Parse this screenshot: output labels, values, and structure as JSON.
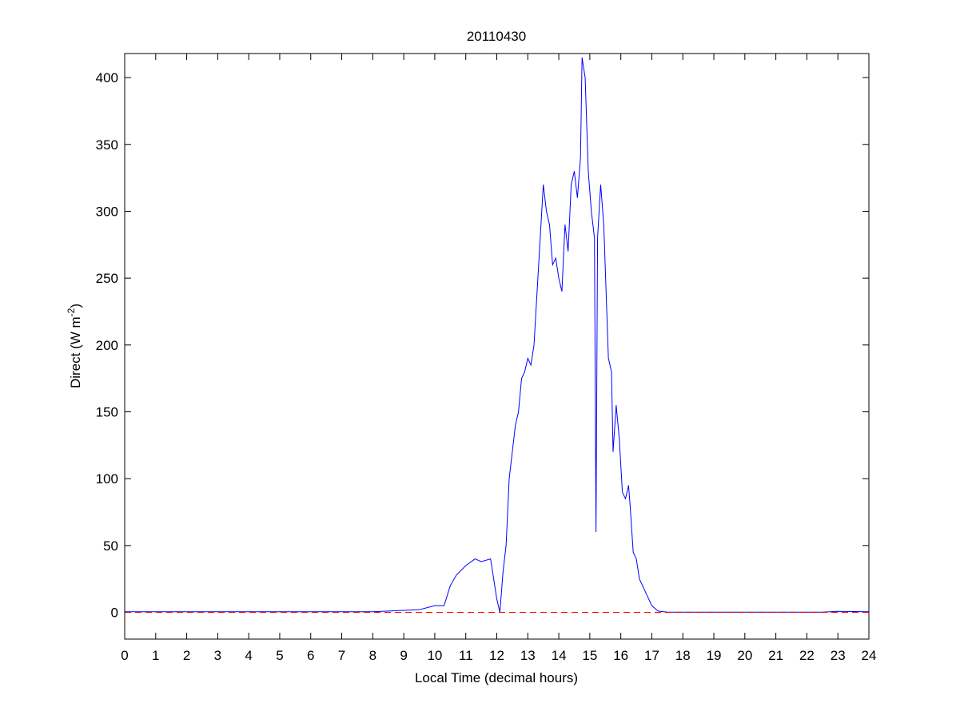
{
  "chart_data": {
    "type": "line",
    "title": "20110430",
    "xlabel": "Local Time (decimal hours)",
    "ylabel": "Direct (W m",
    "ylabel_sup": "-2",
    "ylabel_end": ")",
    "xlim": [
      0,
      24
    ],
    "xticks": [
      0,
      1,
      2,
      3,
      4,
      5,
      6,
      7,
      8,
      9,
      10,
      11,
      12,
      13,
      14,
      15,
      16,
      17,
      18,
      19,
      20,
      21,
      22,
      23,
      24
    ],
    "ylim": [
      -20,
      418
    ],
    "yticks": [
      0,
      50,
      100,
      150,
      200,
      250,
      300,
      350,
      400
    ],
    "series": [
      {
        "color": "#0000ff",
        "style": "solid",
        "x": [
          0,
          1,
          8,
          8.5,
          9,
          9.5,
          10,
          10.3,
          10.5,
          10.7,
          11,
          11.3,
          11.5,
          11.8,
          12,
          12.1,
          12.2,
          12.3,
          12.4,
          12.5,
          12.6,
          12.7,
          12.8,
          12.9,
          13,
          13.1,
          13.2,
          13.3,
          13.4,
          13.5,
          13.6,
          13.7,
          13.8,
          13.9,
          14,
          14.1,
          14.2,
          14.3,
          14.4,
          14.5,
          14.6,
          14.7,
          14.75,
          14.85,
          14.95,
          15.05,
          15.15,
          15.2,
          15.25,
          15.35,
          15.45,
          15.6,
          15.7,
          15.75,
          15.85,
          15.95,
          16.05,
          16.15,
          16.25,
          16.3,
          16.4,
          16.5,
          16.6,
          16.8,
          17,
          17.2,
          17.5,
          22.5,
          23,
          24
        ],
        "values": [
          0.5,
          0.5,
          0.5,
          1,
          1.5,
          2,
          5,
          5,
          20,
          28,
          35,
          40,
          38,
          40,
          10,
          0,
          30,
          50,
          100,
          120,
          140,
          150,
          175,
          180,
          190,
          185,
          200,
          240,
          280,
          320,
          300,
          290,
          260,
          265,
          250,
          240,
          290,
          270,
          320,
          330,
          310,
          340,
          415,
          400,
          330,
          300,
          280,
          60,
          280,
          320,
          290,
          190,
          180,
          120,
          155,
          130,
          90,
          85,
          95,
          80,
          45,
          40,
          25,
          15,
          5,
          1,
          0.2,
          0.2,
          0.8,
          0.5
        ]
      },
      {
        "color": "#ff0000",
        "style": "dashed",
        "x": [
          0,
          24
        ],
        "values": [
          0,
          0
        ]
      }
    ]
  }
}
